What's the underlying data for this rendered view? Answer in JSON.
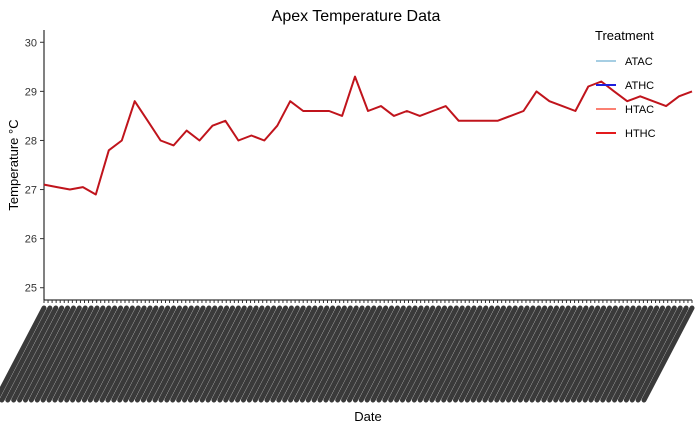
{
  "chart_data": {
    "type": "line",
    "title": "Apex Temperature Data",
    "xlabel": "Date",
    "ylabel": "Temperature °C",
    "ylim": [
      24.75,
      30.25
    ],
    "yticks": [
      25,
      26,
      27,
      28,
      29,
      30
    ],
    "x": [
      0,
      2,
      4,
      6,
      8,
      10,
      12,
      14,
      16,
      18,
      20,
      22,
      24,
      26,
      28,
      30,
      32,
      34,
      36,
      38,
      40,
      42,
      44,
      46,
      48,
      50,
      52,
      54,
      56,
      58,
      60,
      62,
      64,
      66,
      68,
      70,
      72,
      74,
      76,
      78,
      80,
      82,
      84,
      86,
      88,
      90,
      92,
      94,
      96,
      98,
      100
    ],
    "grid": false,
    "legend": {
      "title": "Treatment",
      "position": "top-right",
      "entries": [
        {
          "label": "ATAC",
          "color": "#a6cee3"
        },
        {
          "label": "ATHC",
          "color": "#1f1fdc"
        },
        {
          "label": "HTAC",
          "color": "#fb8072"
        },
        {
          "label": "HTHC",
          "color": "#e31a1c"
        }
      ]
    },
    "series": [
      {
        "name": "HTHC",
        "color": "#c0141c",
        "values": [
          27.1,
          27.05,
          27.0,
          27.05,
          26.9,
          27.8,
          28.0,
          28.8,
          28.4,
          28.0,
          27.9,
          28.2,
          28.0,
          28.3,
          28.4,
          28.0,
          28.1,
          28.0,
          28.3,
          28.8,
          28.6,
          28.6,
          28.6,
          28.5,
          29.3,
          28.6,
          28.7,
          28.5,
          28.6,
          28.5,
          28.6,
          28.7,
          28.4,
          28.4,
          28.4,
          28.4,
          28.5,
          28.6,
          29.0,
          28.8,
          28.7,
          28.6,
          29.1,
          29.2,
          29.0,
          28.8,
          28.9,
          28.8,
          28.7,
          28.9,
          29.0
        ]
      }
    ]
  }
}
